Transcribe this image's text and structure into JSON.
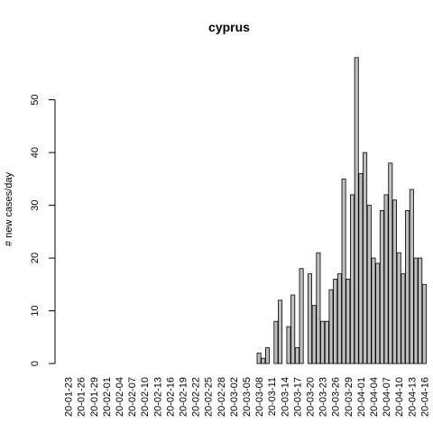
{
  "chart_data": {
    "type": "bar",
    "title": "cyprus",
    "xlabel": "",
    "ylabel": "# new cases/day",
    "ylim": [
      0,
      59
    ],
    "yticks": [
      0,
      10,
      20,
      30,
      40,
      50
    ],
    "bar_color": "#bebebe",
    "x_tick_labels": [
      "20-01-23",
      "20-01-26",
      "20-01-29",
      "20-02-01",
      "20-02-04",
      "20-02-07",
      "20-02-10",
      "20-02-13",
      "20-02-16",
      "20-02-19",
      "20-02-22",
      "20-02-25",
      "20-02-28",
      "20-03-02",
      "20-03-05",
      "20-03-08",
      "20-03-11",
      "20-03-14",
      "20-03-17",
      "20-03-20",
      "20-03-23",
      "20-03-26",
      "20-03-29",
      "20-04-01",
      "20-04-04",
      "20-04-07",
      "20-04-10",
      "20-04-13",
      "20-04-16"
    ],
    "values": [
      0,
      0,
      0,
      0,
      0,
      0,
      0,
      0,
      0,
      0,
      0,
      0,
      0,
      0,
      0,
      0,
      0,
      0,
      0,
      0,
      0,
      0,
      0,
      0,
      0,
      0,
      0,
      0,
      0,
      0,
      0,
      0,
      0,
      0,
      0,
      0,
      0,
      0,
      0,
      0,
      0,
      0,
      0,
      0,
      0,
      2,
      1,
      3,
      0,
      8,
      12,
      0,
      7,
      13,
      3,
      18,
      0,
      17,
      11,
      21,
      8,
      8,
      14,
      16,
      17,
      35,
      16,
      32,
      58,
      36,
      40,
      30,
      20,
      19,
      29,
      32,
      38,
      31,
      21,
      17,
      29,
      33,
      20,
      20,
      15
    ]
  }
}
